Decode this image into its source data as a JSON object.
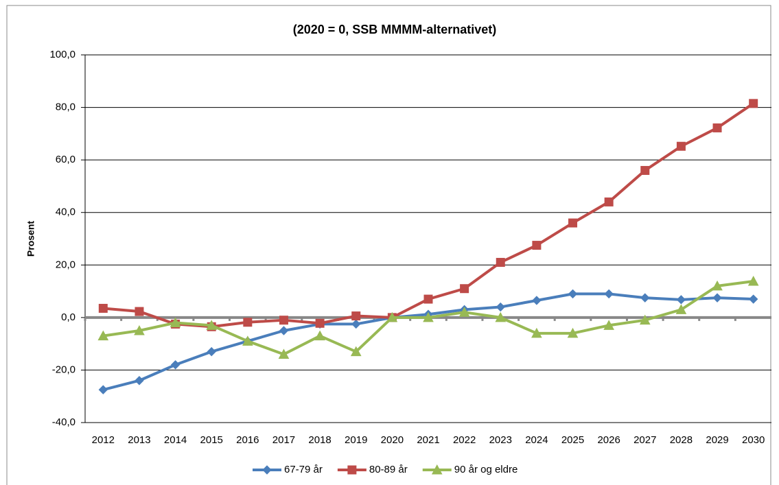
{
  "chart_data": {
    "type": "line",
    "title": "(2020 = 0, SSB MMMM-alternativet)",
    "y_label": "Prosent",
    "categories": [
      "2012",
      "2013",
      "2014",
      "2015",
      "2016",
      "2017",
      "2018",
      "2019",
      "2020",
      "2021",
      "2022",
      "2023",
      "2024",
      "2025",
      "2026",
      "2027",
      "2028",
      "2029",
      "2030"
    ],
    "series": [
      {
        "name": "67-79 år",
        "color": "#4a7ebb",
        "marker": "diamond",
        "values": [
          -27.5,
          -24,
          -18,
          -13,
          -9,
          -5,
          -2.5,
          -2.5,
          0,
          1.2,
          3,
          4,
          6.5,
          9,
          9,
          7.5,
          6.8,
          7.5,
          7
        ]
      },
      {
        "name": "80-89 år",
        "color": "#be4b48",
        "marker": "square",
        "values": [
          3.5,
          2.3,
          -2.5,
          -3.5,
          -1.8,
          -1,
          -2.2,
          0.6,
          0,
          7,
          11,
          21,
          27.5,
          36,
          44,
          56,
          65.2,
          72.2,
          81.5
        ]
      },
      {
        "name": "90 år og eldre",
        "color": "#98b954",
        "marker": "triangle",
        "values": [
          -7,
          -5,
          -2,
          -3,
          -9,
          -14,
          -7,
          -13,
          0,
          0,
          2,
          0,
          -6,
          -6,
          -3,
          -1,
          3,
          12,
          13.8
        ]
      }
    ],
    "ylim": [
      -40,
      100
    ],
    "yticks": [
      {
        "value": -40,
        "label": "-40,0"
      },
      {
        "value": -20,
        "label": "-20,0"
      },
      {
        "value": 0,
        "label": "0,0"
      },
      {
        "value": 20,
        "label": "20,0"
      },
      {
        "value": 40,
        "label": "40,0"
      },
      {
        "value": 60,
        "label": "60,0"
      },
      {
        "value": 80,
        "label": "80,0"
      },
      {
        "value": 100,
        "label": "100,0"
      }
    ],
    "grid": true,
    "legend": "bottom"
  }
}
